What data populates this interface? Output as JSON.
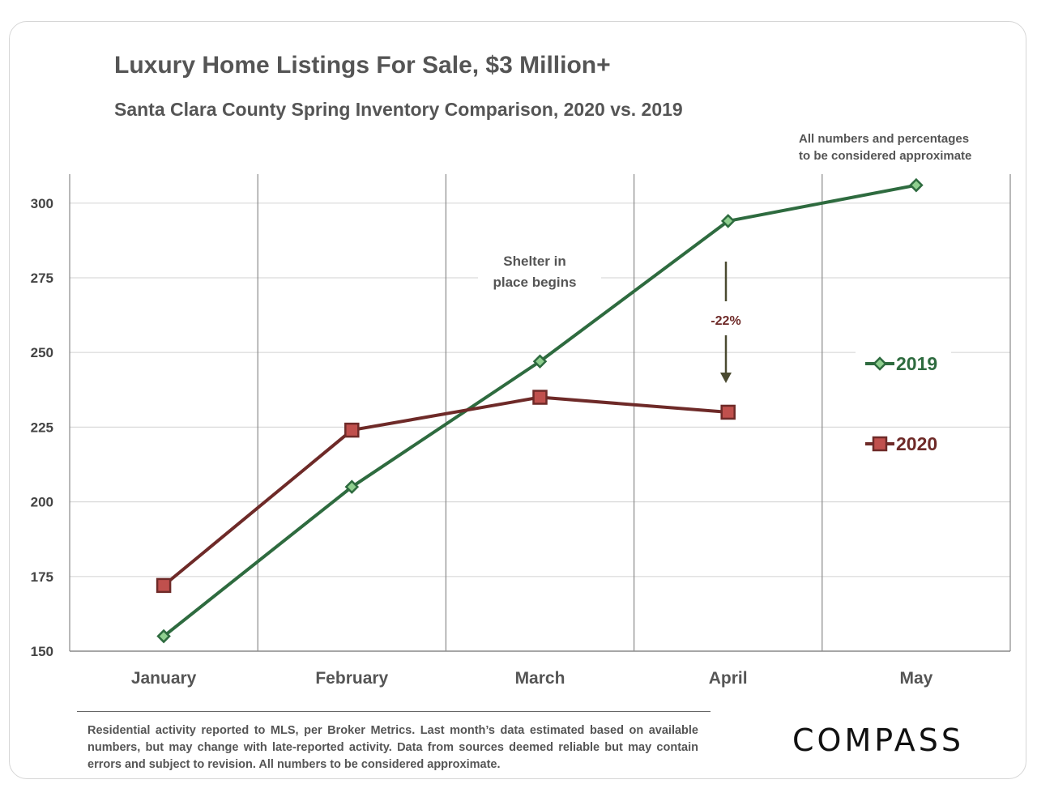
{
  "chart_data": {
    "type": "line",
    "title": "Luxury Home Listings For Sale, $3 Million+",
    "subtitle": "Santa Clara County Spring Inventory Comparison, 2020 vs. 2019",
    "categories": [
      "January",
      "February",
      "March",
      "April",
      "May"
    ],
    "ylim": [
      150,
      310
    ],
    "yticks": [
      150,
      175,
      200,
      225,
      250,
      275,
      300
    ],
    "series": [
      {
        "name": "2019",
        "color": "#2e6b3f",
        "values": [
          155,
          205,
          247,
          294,
          306
        ]
      },
      {
        "name": "2020",
        "color": "#6e2a28",
        "values": [
          172,
          224,
          235,
          230,
          null
        ]
      }
    ],
    "annotations": {
      "shelter_line1": "Shelter in",
      "shelter_line2": "place  begins",
      "change": "-22%"
    },
    "note_line1": "All numbers and percentages",
    "note_line2": "to be considered approximate",
    "legend_position": "right"
  },
  "footnote": "Residential activity reported to MLS, per Broker Metrics. Last month’s data estimated based on available numbers, but may change with late-reported activity. Data from sources deemed reliable but may contain errors and subject to revision. All numbers to be considered approximate.",
  "brand": "COMPASS"
}
